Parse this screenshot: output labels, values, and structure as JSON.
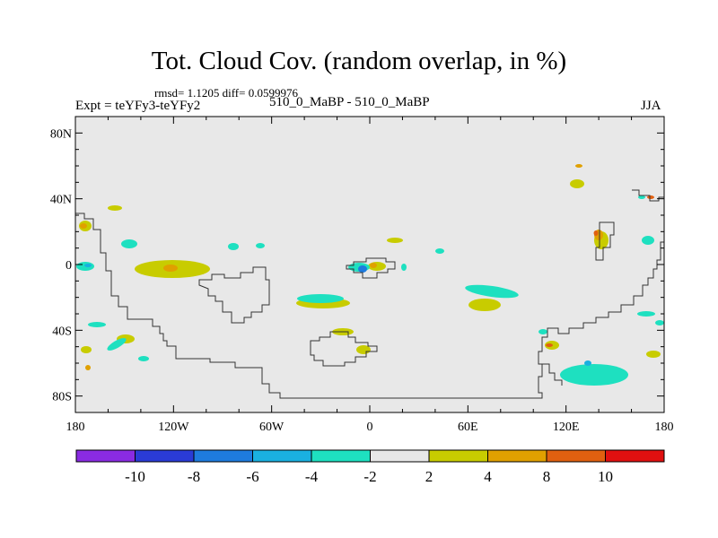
{
  "plot": {
    "title": "Tot. Cloud Cov. (random overlap, in %)",
    "stats": "rmsd= 1.1205 diff= 0.0599976",
    "experiment": "Expt = teYFy3-teYFy2",
    "case": "510_0_MaBP - 510_0_MaBP",
    "season": "JJA"
  },
  "axes": {
    "lat_ticks": [
      "80N",
      "40N",
      "0",
      "40S",
      "80S"
    ],
    "lat_values": [
      80,
      40,
      0,
      -40,
      -80
    ],
    "lon_ticks": [
      "180",
      "120W",
      "60W",
      "0",
      "60E",
      "120E",
      "180"
    ],
    "lon_values": [
      -180,
      -120,
      -60,
      0,
      60,
      120,
      180
    ],
    "lat_range": [
      -90,
      90
    ],
    "lon_range": [
      -180,
      180
    ]
  },
  "colorbar": {
    "labels": [
      "-10",
      "-8",
      "-6",
      "-4",
      "-2",
      "2",
      "4",
      "8",
      "10"
    ],
    "colors": [
      "#8a2be2",
      "#2a3bd6",
      "#1e7bde",
      "#1ab0e0",
      "#1ee0c0",
      "#e8e8e8",
      "#c8cc00",
      "#e0a000",
      "#e06010",
      "#e01010"
    ]
  },
  "colors": {
    "background": "#e8e8e8",
    "coast": "#333333"
  },
  "chart_data": {
    "type": "heatmap",
    "title": "Tot. Cloud Cov. (random overlap, in %)",
    "units": "%",
    "legend_levels": [
      -10,
      -8,
      -6,
      -4,
      -2,
      2,
      4,
      8,
      10
    ],
    "notable_features": [
      {
        "lon": -110,
        "lat": 0,
        "value_class": "2 to 4"
      },
      {
        "lon": 0,
        "lat": 0,
        "value_class": "-8 to -6"
      },
      {
        "lon": 160,
        "lat": -65,
        "value_class": "-4 to -2"
      },
      {
        "lon": 140,
        "lat": 15,
        "value_class": "4 to 8"
      },
      {
        "lon": 80,
        "lat": -17,
        "value_class": "-4 to -2"
      }
    ]
  }
}
